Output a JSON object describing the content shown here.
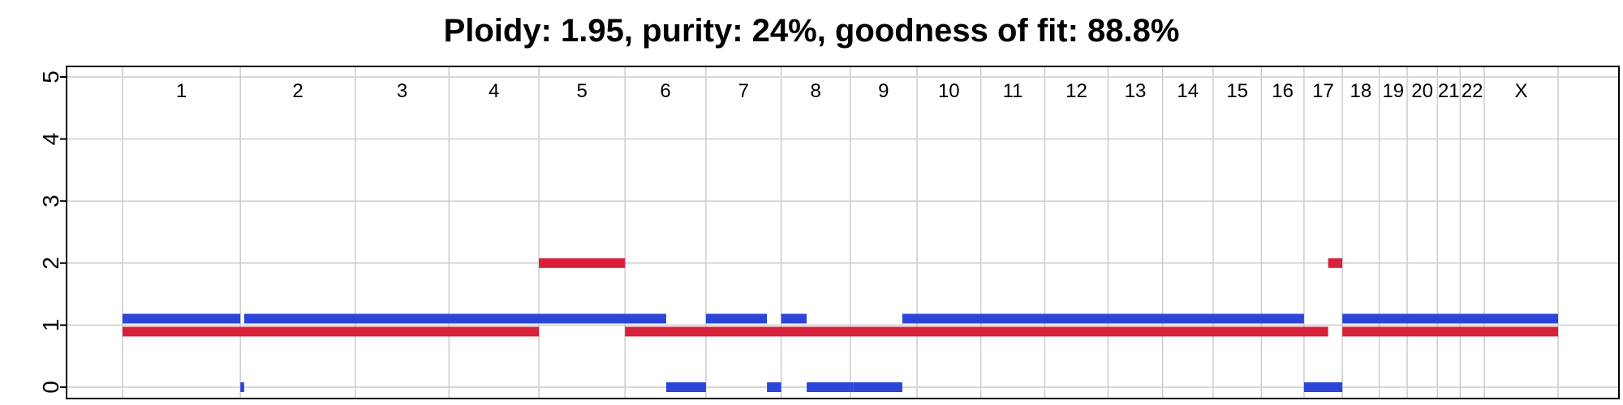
{
  "chart_data": {
    "type": "bar",
    "title": "Ploidy: 1.95, purity: 24%, goodness of fit: 88.8%",
    "xlabel": "",
    "ylabel": "",
    "ylim": [
      0,
      5
    ],
    "yticks": [
      "0",
      "1",
      "2",
      "3",
      "4",
      "5"
    ],
    "grid": true,
    "colors": {
      "major": "#d7213a",
      "minor": "#2b45d8",
      "grid": "#cccccc",
      "axis": "#000000"
    },
    "chromosomes": [
      {
        "name": "1",
        "start": 0,
        "end": 249
      },
      {
        "name": "2",
        "start": 249,
        "end": 492
      },
      {
        "name": "3",
        "start": 492,
        "end": 690
      },
      {
        "name": "4",
        "start": 690,
        "end": 880
      },
      {
        "name": "5",
        "start": 880,
        "end": 1062
      },
      {
        "name": "6",
        "start": 1062,
        "end": 1233
      },
      {
        "name": "7",
        "start": 1233,
        "end": 1392
      },
      {
        "name": "8",
        "start": 1392,
        "end": 1538
      },
      {
        "name": "9",
        "start": 1538,
        "end": 1679
      },
      {
        "name": "10",
        "start": 1679,
        "end": 1814
      },
      {
        "name": "11",
        "start": 1814,
        "end": 1949
      },
      {
        "name": "12",
        "start": 1949,
        "end": 2083
      },
      {
        "name": "13",
        "start": 2083,
        "end": 2198
      },
      {
        "name": "14",
        "start": 2198,
        "end": 2305
      },
      {
        "name": "15",
        "start": 2305,
        "end": 2407
      },
      {
        "name": "16",
        "start": 2407,
        "end": 2497
      },
      {
        "name": "17",
        "start": 2497,
        "end": 2578
      },
      {
        "name": "18",
        "start": 2578,
        "end": 2656
      },
      {
        "name": "19",
        "start": 2656,
        "end": 2715
      },
      {
        "name": "20",
        "start": 2715,
        "end": 2779
      },
      {
        "name": "21",
        "start": 2779,
        "end": 2827
      },
      {
        "name": "22",
        "start": 2827,
        "end": 2878
      },
      {
        "name": "X",
        "start": 2878,
        "end": 3034
      }
    ],
    "series": [
      {
        "segments": [
          {
            "start": 0,
            "end": 880,
            "value": 1
          },
          {
            "start": 880,
            "end": 1062,
            "value": 2
          },
          {
            "start": 1062,
            "end": 2548,
            "value": 1
          },
          {
            "start": 2548,
            "end": 2578,
            "value": 2
          },
          {
            "start": 2578,
            "end": 3034,
            "value": 1
          }
        ]
      },
      {
        "segments": [
          {
            "start": 0,
            "end": 249,
            "value": 1
          },
          {
            "start": 249,
            "end": 257,
            "value": 0
          },
          {
            "start": 257,
            "end": 1149,
            "value": 1
          },
          {
            "start": 1149,
            "end": 1233,
            "value": 0
          },
          {
            "start": 1233,
            "end": 1362,
            "value": 1
          },
          {
            "start": 1362,
            "end": 1392,
            "value": 0
          },
          {
            "start": 1392,
            "end": 1421,
            "value": 1
          },
          {
            "start": 1421,
            "end": 1446,
            "value": 1
          },
          {
            "start": 1446,
            "end": 1538,
            "value": 0
          },
          {
            "start": 1538,
            "end": 1544,
            "value": 0
          },
          {
            "start": 1544,
            "end": 1648,
            "value": 0
          },
          {
            "start": 1648,
            "end": 2497,
            "value": 1
          },
          {
            "start": 2497,
            "end": 2578,
            "value": 0
          },
          {
            "start": 2578,
            "end": 3034,
            "value": 1
          }
        ]
      }
    ]
  }
}
